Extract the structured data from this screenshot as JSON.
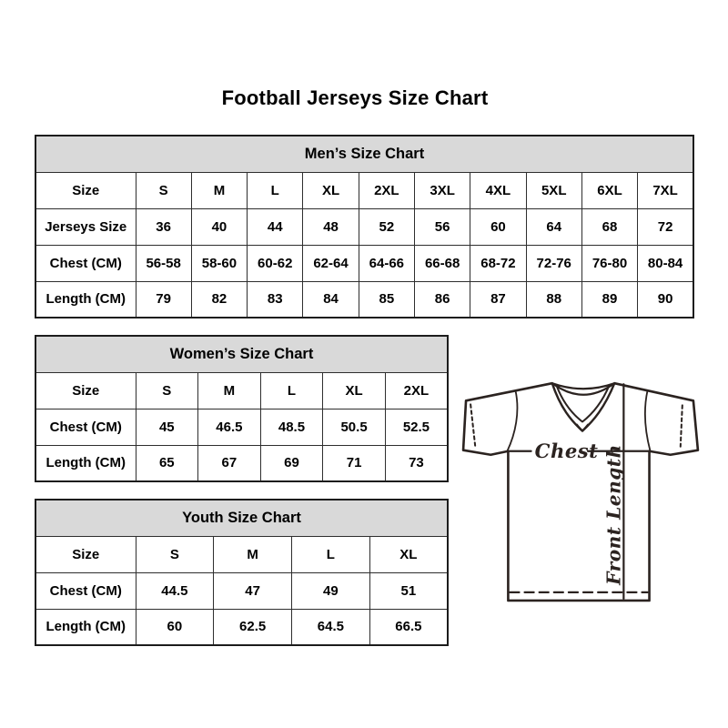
{
  "page": {
    "title": "Football Jerseys Size Chart"
  },
  "tables": [
    {
      "id": "mens",
      "header": "Men’s Size Chart",
      "rows": [
        [
          "Size",
          "S",
          "M",
          "L",
          "XL",
          "2XL",
          "3XL",
          "4XL",
          "5XL",
          "6XL",
          "7XL"
        ],
        [
          "Jerseys Size",
          "36",
          "40",
          "44",
          "48",
          "52",
          "56",
          "60",
          "64",
          "68",
          "72"
        ],
        [
          "Chest (CM)",
          "56-58",
          "58-60",
          "60-62",
          "62-64",
          "64-66",
          "66-68",
          "68-72",
          "72-76",
          "76-80",
          "80-84"
        ],
        [
          "Length (CM)",
          "79",
          "82",
          "83",
          "84",
          "85",
          "86",
          "87",
          "88",
          "89",
          "90"
        ]
      ]
    },
    {
      "id": "womens",
      "header": "Women’s Size Chart",
      "rows": [
        [
          "Size",
          "S",
          "M",
          "L",
          "XL",
          "2XL"
        ],
        [
          "Chest (CM)",
          "45",
          "46.5",
          "48.5",
          "50.5",
          "52.5"
        ],
        [
          "Length (CM)",
          "65",
          "67",
          "69",
          "71",
          "73"
        ]
      ]
    },
    {
      "id": "youth",
      "header": "Youth Size Chart",
      "rows": [
        [
          "Size",
          "S",
          "M",
          "L",
          "XL"
        ],
        [
          "Chest (CM)",
          "44.5",
          "47",
          "49",
          "51"
        ],
        [
          "Length (CM)",
          "60",
          "62.5",
          "64.5",
          "66.5"
        ]
      ]
    }
  ],
  "diagram": {
    "chest_label": "Chest",
    "front_length_label": "Front Length"
  },
  "colors": {
    "header_bg": "#d9d9d9",
    "table_border": "#2e2e2e",
    "text": "#000000",
    "diagram_stroke": "#2b2320"
  }
}
